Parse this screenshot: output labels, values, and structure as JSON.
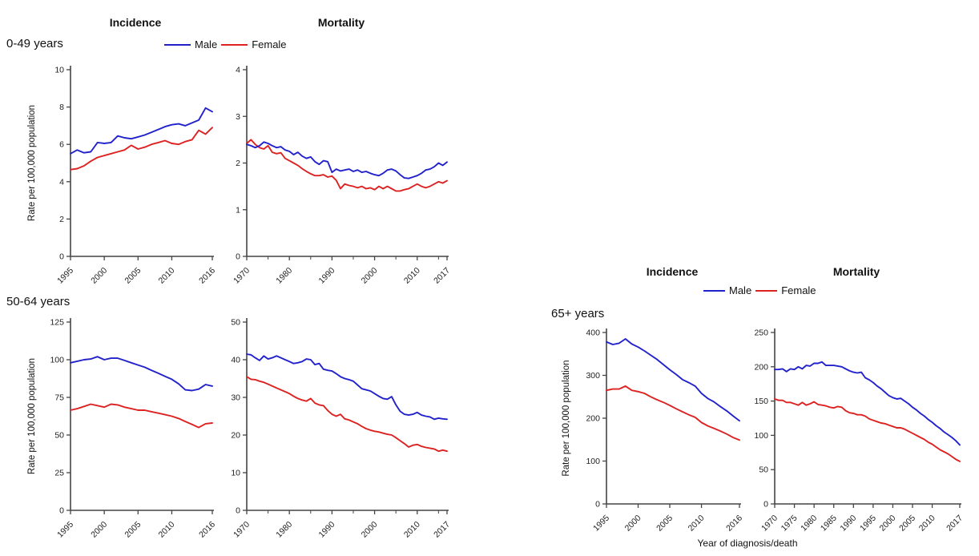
{
  "figure": {
    "left_group": {
      "incidence_title": "Incidence",
      "mortality_title": "Mortality",
      "age_label_top": "0-49 years",
      "age_label_bottom": "50-64 years"
    },
    "right_group": {
      "incidence_title": "Incidence",
      "mortality_title": "Mortality",
      "age_label": "65+ years"
    },
    "legend": {
      "male": "Male",
      "female": "Female"
    },
    "ylabel": "Rate per 100,000 population",
    "xlabel": "Year of diagnosis/death"
  },
  "colors": {
    "male": "#2222cc",
    "female": "#dd2222",
    "axis": "#444444",
    "tick_text": "#222222"
  },
  "chart_data": [
    {
      "id": "incidence-0-49",
      "type": "line",
      "measure": "Incidence",
      "age_group": "0-49 years",
      "x_start": 1995,
      "x_end": 2016,
      "ylim": [
        0,
        10
      ],
      "yticks": [
        0,
        2,
        4,
        6,
        8,
        10
      ],
      "xticks": [
        1995,
        2000,
        2005,
        2010,
        2016
      ],
      "xticks_minor": [],
      "series": [
        {
          "name": "Male",
          "color_key": "male",
          "values": [
            5.5,
            5.7,
            5.55,
            5.6,
            6.1,
            6.05,
            6.1,
            6.45,
            6.35,
            6.3,
            6.4,
            6.5,
            6.65,
            6.8,
            6.95,
            7.05,
            7.1,
            7.0,
            7.15,
            7.3,
            7.95,
            7.75
          ]
        },
        {
          "name": "Female",
          "color_key": "female",
          "values": [
            4.65,
            4.7,
            4.85,
            5.1,
            5.3,
            5.4,
            5.5,
            5.6,
            5.7,
            5.95,
            5.75,
            5.85,
            6.0,
            6.1,
            6.2,
            6.05,
            6.0,
            6.15,
            6.25,
            6.75,
            6.55,
            6.9
          ]
        }
      ]
    },
    {
      "id": "mortality-0-49",
      "type": "line",
      "measure": "Mortality",
      "age_group": "0-49 years",
      "x_start": 1970,
      "x_end": 2017,
      "ylim": [
        0,
        4
      ],
      "yticks": [
        0,
        1,
        2,
        3,
        4
      ],
      "xticks": [
        1970,
        1980,
        1990,
        2000,
        2010,
        2017
      ],
      "xticks_minor": [
        1975,
        1985,
        1995,
        2005,
        2015
      ],
      "series": [
        {
          "name": "Male",
          "color_key": "male",
          "values": [
            2.4,
            2.37,
            2.33,
            2.37,
            2.45,
            2.42,
            2.37,
            2.33,
            2.35,
            2.28,
            2.25,
            2.18,
            2.23,
            2.15,
            2.1,
            2.13,
            2.03,
            1.97,
            2.05,
            2.03,
            1.8,
            1.87,
            1.83,
            1.85,
            1.87,
            1.82,
            1.85,
            1.8,
            1.82,
            1.78,
            1.75,
            1.73,
            1.78,
            1.85,
            1.87,
            1.83,
            1.75,
            1.68,
            1.67,
            1.7,
            1.73,
            1.78,
            1.85,
            1.87,
            1.92,
            2.0,
            1.95,
            2.02
          ]
        },
        {
          "name": "Female",
          "color_key": "female",
          "values": [
            2.42,
            2.5,
            2.4,
            2.33,
            2.3,
            2.37,
            2.23,
            2.2,
            2.22,
            2.1,
            2.05,
            2.0,
            1.95,
            1.88,
            1.82,
            1.77,
            1.73,
            1.73,
            1.75,
            1.7,
            1.72,
            1.63,
            1.45,
            1.55,
            1.52,
            1.5,
            1.47,
            1.5,
            1.45,
            1.47,
            1.43,
            1.5,
            1.45,
            1.5,
            1.45,
            1.4,
            1.4,
            1.43,
            1.45,
            1.5,
            1.55,
            1.5,
            1.47,
            1.5,
            1.55,
            1.6,
            1.57,
            1.62
          ]
        }
      ]
    },
    {
      "id": "incidence-50-64",
      "type": "line",
      "measure": "Incidence",
      "age_group": "50-64 years",
      "x_start": 1995,
      "x_end": 2016,
      "ylim": [
        0,
        125
      ],
      "yticks": [
        0,
        25,
        50,
        75,
        100,
        125
      ],
      "xticks": [
        1995,
        2000,
        2005,
        2010,
        2016
      ],
      "xticks_minor": [],
      "series": [
        {
          "name": "Male",
          "color_key": "male",
          "values": [
            98,
            99,
            100,
            100.5,
            102,
            100,
            101,
            101,
            99.5,
            98,
            96.5,
            95,
            93,
            91,
            89,
            87,
            84,
            80,
            79.5,
            80.5,
            83.5,
            82.5
          ]
        },
        {
          "name": "Female",
          "color_key": "female",
          "values": [
            66.5,
            67.5,
            69,
            70.5,
            69.5,
            68.5,
            70.5,
            70,
            68.5,
            67.5,
            66.5,
            66.5,
            65.5,
            64.5,
            63.5,
            62.5,
            61,
            59,
            57,
            55,
            57.5,
            58
          ]
        }
      ]
    },
    {
      "id": "mortality-50-64",
      "type": "line",
      "measure": "Mortality",
      "age_group": "50-64 years",
      "x_start": 1970,
      "x_end": 2017,
      "ylim": [
        0,
        50
      ],
      "yticks": [
        0,
        10,
        20,
        30,
        40,
        50
      ],
      "xticks": [
        1970,
        1980,
        1990,
        2000,
        2010,
        2017
      ],
      "xticks_minor": [
        1975,
        1985,
        1995,
        2005,
        2015
      ],
      "series": [
        {
          "name": "Male",
          "color_key": "male",
          "values": [
            41.5,
            41.3,
            40.5,
            39.8,
            41.0,
            40.2,
            40.5,
            41.0,
            40.5,
            40.0,
            39.5,
            39.0,
            39.2,
            39.5,
            40.2,
            40.0,
            38.7,
            39.0,
            37.5,
            37.2,
            37.0,
            36.3,
            35.5,
            35.0,
            34.7,
            34.3,
            33.3,
            32.3,
            32.0,
            31.7,
            31.0,
            30.3,
            29.7,
            29.5,
            30.2,
            28.0,
            26.3,
            25.5,
            25.3,
            25.5,
            26.0,
            25.3,
            25.0,
            24.8,
            24.2,
            24.5,
            24.3,
            24.2
          ]
        },
        {
          "name": "Female",
          "color_key": "female",
          "values": [
            35.5,
            34.8,
            34.7,
            34.3,
            34.0,
            33.5,
            33.0,
            32.5,
            32.0,
            31.5,
            31.0,
            30.3,
            29.7,
            29.3,
            29.0,
            29.7,
            28.5,
            28.0,
            27.8,
            26.5,
            25.5,
            25.0,
            25.5,
            24.3,
            24.0,
            23.5,
            23.0,
            22.3,
            21.7,
            21.3,
            21.0,
            20.8,
            20.5,
            20.2,
            20.0,
            19.3,
            18.5,
            17.7,
            16.8,
            17.3,
            17.5,
            17.0,
            16.7,
            16.5,
            16.3,
            15.7,
            16.0,
            15.7
          ]
        }
      ]
    },
    {
      "id": "incidence-65plus",
      "type": "line",
      "measure": "Incidence",
      "age_group": "65+ years",
      "x_start": 1995,
      "x_end": 2016,
      "ylim": [
        0,
        400
      ],
      "yticks": [
        0,
        100,
        200,
        300,
        400
      ],
      "xticks": [
        1995,
        2000,
        2005,
        2010,
        2016
      ],
      "xticks_minor": [],
      "series": [
        {
          "name": "Male",
          "color_key": "male",
          "values": [
            378,
            372,
            375,
            385,
            373,
            366,
            357,
            347,
            337,
            325,
            313,
            302,
            290,
            283,
            275,
            258,
            246,
            238,
            227,
            217,
            205,
            194
          ]
        },
        {
          "name": "Female",
          "color_key": "female",
          "values": [
            265,
            268,
            268,
            275,
            265,
            262,
            258,
            250,
            243,
            237,
            230,
            222,
            215,
            208,
            202,
            190,
            182,
            176,
            170,
            163,
            155,
            149
          ]
        }
      ]
    },
    {
      "id": "mortality-65plus",
      "type": "line",
      "measure": "Mortality",
      "age_group": "65+ years",
      "x_start": 1970,
      "x_end": 2017,
      "ylim": [
        0,
        250
      ],
      "yticks": [
        0,
        50,
        100,
        150,
        200,
        250
      ],
      "xticks": [
        1970,
        1975,
        1980,
        1985,
        1990,
        1995,
        2000,
        2005,
        2010,
        2017
      ],
      "xticks_minor": [],
      "series": [
        {
          "name": "Male",
          "color_key": "male",
          "values": [
            196,
            196,
            197,
            193,
            197,
            196,
            200,
            197,
            202,
            201,
            205,
            205,
            207,
            202,
            202,
            202,
            201,
            200,
            197,
            194,
            192,
            191,
            192,
            184,
            181,
            177,
            172,
            168,
            163,
            158,
            155,
            153,
            154,
            150,
            146,
            141,
            137,
            132,
            128,
            123,
            119,
            114,
            110,
            105,
            101,
            97,
            92,
            86
          ]
        },
        {
          "name": "Female",
          "color_key": "female",
          "values": [
            153,
            151,
            151,
            148,
            148,
            146,
            144,
            148,
            144,
            146,
            149,
            145,
            144,
            143,
            141,
            140,
            142,
            141,
            136,
            133,
            132,
            130,
            130,
            128,
            124,
            122,
            120,
            118,
            117,
            115,
            113,
            111,
            111,
            109,
            106,
            103,
            100,
            97,
            94,
            90,
            87,
            83,
            79,
            76,
            73,
            69,
            65,
            62
          ]
        }
      ]
    }
  ]
}
